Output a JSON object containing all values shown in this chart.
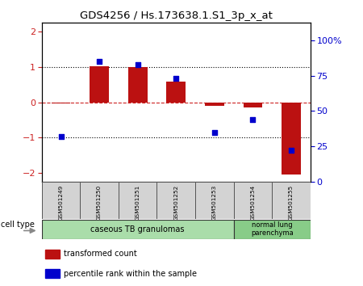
{
  "title": "GDS4256 / Hs.173638.1.S1_3p_x_at",
  "samples": [
    "GSM501249",
    "GSM501250",
    "GSM501251",
    "GSM501252",
    "GSM501253",
    "GSM501254",
    "GSM501255"
  ],
  "transformed_count": [
    -0.04,
    1.02,
    1.0,
    0.58,
    -0.1,
    -0.15,
    -2.05
  ],
  "percentile_rank": [
    32,
    85,
    83,
    73,
    35,
    44,
    22
  ],
  "ylim_left": [
    -2.25,
    2.25
  ],
  "ylim_right": [
    0,
    112.5
  ],
  "yticks_left": [
    -2,
    -1,
    0,
    1,
    2
  ],
  "yticks_right": [
    0,
    25,
    50,
    75,
    100
  ],
  "ytick_labels_right": [
    "0",
    "25",
    "50",
    "75",
    "100%"
  ],
  "bar_color": "#bb1111",
  "dot_color": "#0000cc",
  "bg_color": "#ffffff",
  "tick_color_left": "#cc2222",
  "tick_color_right": "#0000cc",
  "bar_width": 0.5,
  "group1_color": "#aaddaa",
  "group2_color": "#88cc88",
  "legend_entries": [
    {
      "color": "#bb1111",
      "label": "transformed count"
    },
    {
      "color": "#0000cc",
      "label": "percentile rank within the sample"
    }
  ]
}
